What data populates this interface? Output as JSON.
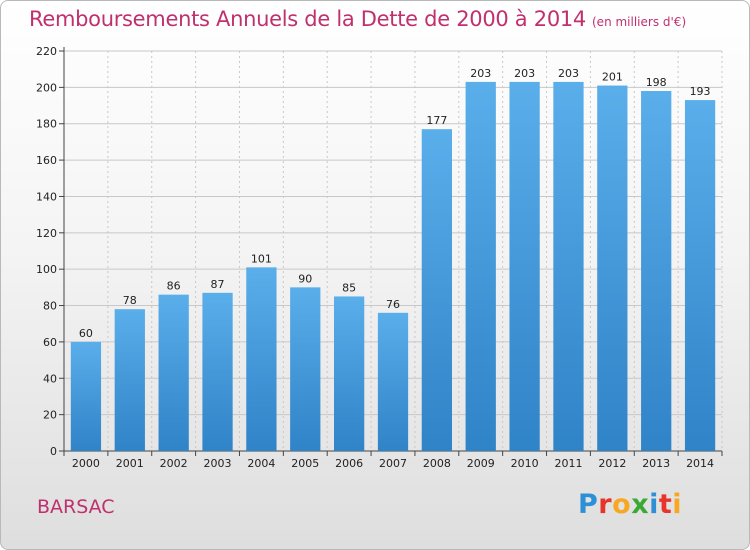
{
  "header": {
    "title": "Remboursements Annuels de la Dette de 2000 à 2014",
    "unit": "(en milliers d'€)"
  },
  "footer": {
    "commune": "BARSAC",
    "logo_letters": [
      "P",
      "r",
      "o",
      "x",
      "i",
      "t",
      "i"
    ],
    "logo_colors": [
      "#2d8fd5",
      "#e8352b",
      "#f7a823",
      "#3aaa35",
      "#2d8fd5",
      "#e8352b",
      "#f7a823"
    ]
  },
  "chart_data": {
    "type": "bar",
    "categories": [
      "2000",
      "2001",
      "2002",
      "2003",
      "2004",
      "2005",
      "2006",
      "2007",
      "2008",
      "2009",
      "2010",
      "2011",
      "2012",
      "2013",
      "2014"
    ],
    "values": [
      60,
      78,
      86,
      87,
      101,
      90,
      85,
      76,
      177,
      203,
      203,
      203,
      201,
      198,
      193
    ],
    "ylim": [
      0,
      220
    ],
    "yticks": [
      0,
      20,
      40,
      60,
      80,
      100,
      120,
      140,
      160,
      180,
      200,
      220
    ],
    "grid": true,
    "bar_color_top": "#5aaeea",
    "bar_color_bottom": "#2f83c7"
  }
}
